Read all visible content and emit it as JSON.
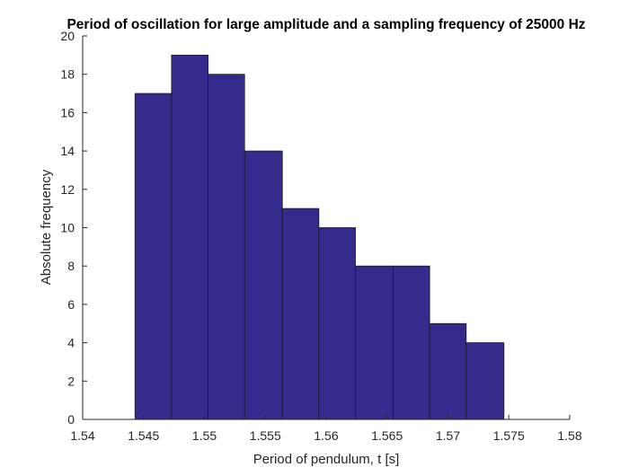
{
  "chart_data": {
    "type": "bar",
    "title": "Period of oscillation for large amplitude and a sampling frequency of 25000 Hz",
    "xlabel": "Period of pendulum, t [s]",
    "ylabel": "Absolute frequency",
    "xlim": [
      1.54,
      1.58
    ],
    "ylim": [
      0,
      20
    ],
    "xticks": [
      "1.54",
      "1.545",
      "1.55",
      "1.555",
      "1.56",
      "1.565",
      "1.57",
      "1.575",
      "1.58"
    ],
    "yticks": [
      "0",
      "2",
      "4",
      "6",
      "8",
      "10",
      "12",
      "14",
      "16",
      "18",
      "20"
    ],
    "bin_edges": [
      1.5443,
      1.5473,
      1.5503,
      1.5533,
      1.5564,
      1.5594,
      1.5624,
      1.5655,
      1.5685,
      1.5715,
      1.5746,
      1.5776
    ],
    "values": [
      17,
      19,
      18,
      14,
      11,
      10,
      8,
      8,
      5,
      4,
      0
    ],
    "grid": false,
    "colors": {
      "bar_fill": "#352b8d",
      "bar_edge": "#1a1a1a",
      "axis": "#262626"
    }
  }
}
